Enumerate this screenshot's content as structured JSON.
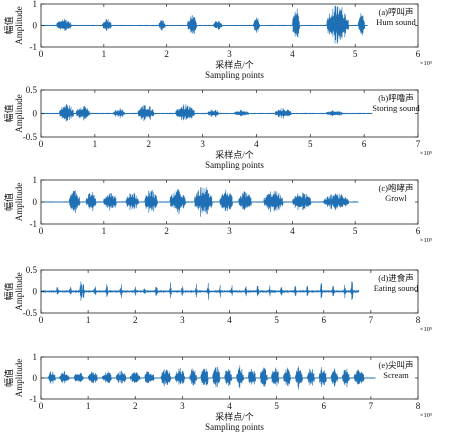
{
  "chart_data": [
    {
      "type": "line",
      "annotation": [
        "(a)哼叫声",
        "Hum sound"
      ],
      "ylabel": [
        "幅值",
        "Amplitude"
      ],
      "xlabel": [
        "采样点/个",
        "Sampling points"
      ],
      "xlim": [
        0,
        6
      ],
      "ylim": [
        -1,
        1
      ],
      "xticks": [
        0,
        1,
        2,
        3,
        4,
        5,
        6
      ],
      "yticks": [
        -1,
        0,
        1
      ],
      "x_multiplier": "×10⁵",
      "signal_end": 5.2,
      "bursts": [
        {
          "x": [
            0.25,
            0.48
          ],
          "peak": 0.35
        },
        {
          "x": [
            0.98,
            1.12
          ],
          "peak": 0.35
        },
        {
          "x": [
            1.88,
            1.98
          ],
          "peak": 0.3
        },
        {
          "x": [
            2.33,
            2.48
          ],
          "peak": 0.5
        },
        {
          "x": [
            2.75,
            2.88
          ],
          "peak": 0.3
        },
        {
          "x": [
            3.38,
            3.48
          ],
          "peak": 0.4
        },
        {
          "x": [
            4.0,
            4.12
          ],
          "peak": 0.9
        },
        {
          "x": [
            4.55,
            4.9
          ],
          "peak": 1.0
        },
        {
          "x": [
            5.05,
            5.15
          ],
          "peak": 0.6
        }
      ]
    },
    {
      "type": "line",
      "annotation": [
        "(b)呼噜声",
        "Storing sound"
      ],
      "ylabel": [
        "幅值",
        "Amplitude"
      ],
      "xlabel": [
        "采样点/个",
        "Sampling points"
      ],
      "xlim": [
        0,
        7
      ],
      "ylim": [
        -0.5,
        0.5
      ],
      "xticks": [
        0,
        1,
        2,
        3,
        4,
        5,
        6,
        7
      ],
      "yticks": [
        -0.5,
        0,
        0.5
      ],
      "x_multiplier": "×10⁵",
      "signal_end": 6.15,
      "bursts": [
        {
          "x": [
            0.35,
            0.6
          ],
          "peak": 0.22
        },
        {
          "x": [
            0.65,
            0.9
          ],
          "peak": 0.2
        },
        {
          "x": [
            1.35,
            1.55
          ],
          "peak": 0.12
        },
        {
          "x": [
            1.8,
            2.1
          ],
          "peak": 0.2
        },
        {
          "x": [
            2.5,
            2.85
          ],
          "peak": 0.2
        },
        {
          "x": [
            3.1,
            3.3
          ],
          "peak": 0.1
        },
        {
          "x": [
            3.6,
            3.85
          ],
          "peak": 0.08
        },
        {
          "x": [
            4.35,
            4.65
          ],
          "peak": 0.12
        },
        {
          "x": [
            5.3,
            5.6
          ],
          "peak": 0.08
        }
      ]
    },
    {
      "type": "line",
      "annotation": [
        "(c)咆哮声",
        "Growl"
      ],
      "ylabel": [
        "幅值",
        "Amplitude"
      ],
      "xlabel": [
        "采样点/个",
        "Sampling points"
      ],
      "xlim": [
        0,
        6
      ],
      "ylim": [
        -1,
        1
      ],
      "xticks": [
        0,
        1,
        2,
        3,
        4,
        5,
        6
      ],
      "yticks": [
        -1,
        0,
        1
      ],
      "x_multiplier": "×10⁵",
      "signal_end": 5.05,
      "bursts": [
        {
          "x": [
            0.45,
            0.62
          ],
          "peak": 0.6
        },
        {
          "x": [
            0.72,
            0.88
          ],
          "peak": 0.5
        },
        {
          "x": [
            1.0,
            1.2
          ],
          "peak": 0.55
        },
        {
          "x": [
            1.35,
            1.55
          ],
          "peak": 0.5
        },
        {
          "x": [
            1.65,
            1.85
          ],
          "peak": 0.6
        },
        {
          "x": [
            2.05,
            2.3
          ],
          "peak": 0.6
        },
        {
          "x": [
            2.45,
            2.72
          ],
          "peak": 0.75
        },
        {
          "x": [
            2.85,
            3.05
          ],
          "peak": 0.6
        },
        {
          "x": [
            3.15,
            3.35
          ],
          "peak": 0.5
        },
        {
          "x": [
            3.55,
            3.85
          ],
          "peak": 0.55
        },
        {
          "x": [
            4.0,
            4.3
          ],
          "peak": 0.45
        },
        {
          "x": [
            4.5,
            4.9
          ],
          "peak": 0.4
        }
      ]
    },
    {
      "type": "line",
      "annotation": [
        "(d)进食声",
        "Eating sound"
      ],
      "ylabel": [
        "幅值",
        "Amplitude"
      ],
      "xlabel": [
        "采样点/个",
        "Sampling points"
      ],
      "xlim": [
        0,
        8
      ],
      "ylim": [
        -0.5,
        0.5
      ],
      "xticks": [
        0,
        1,
        2,
        3,
        4,
        5,
        6,
        7,
        8
      ],
      "yticks": [
        -0.5,
        0,
        0.5
      ],
      "x_multiplier": "×10⁵",
      "signal_end": 6.75,
      "spikes": [
        0.35,
        0.62,
        0.85,
        0.9,
        1.15,
        1.4,
        1.7,
        2.0,
        2.2,
        2.45,
        2.75,
        3.0,
        3.3,
        3.55,
        3.8,
        4.05,
        4.35,
        4.6,
        4.85,
        5.1,
        5.4,
        5.65,
        5.95,
        6.2,
        6.45,
        6.6
      ],
      "spike_peaks": [
        0.15,
        0.2,
        0.45,
        0.3,
        0.2,
        0.2,
        0.25,
        0.2,
        0.15,
        0.2,
        0.25,
        0.2,
        0.2,
        0.25,
        0.2,
        0.2,
        0.25,
        0.2,
        0.2,
        0.25,
        0.2,
        0.2,
        0.25,
        0.2,
        0.2,
        0.5
      ]
    },
    {
      "type": "line",
      "annotation": [
        "(e)尖叫声",
        "Scream"
      ],
      "ylabel": [
        "幅值",
        "Amplitude"
      ],
      "xlabel": [
        "采样点/个",
        "Sampling points"
      ],
      "xlim": [
        0,
        8
      ],
      "ylim": [
        -1,
        1
      ],
      "xticks": [
        0,
        1,
        2,
        3,
        4,
        5,
        6,
        7,
        8
      ],
      "yticks": [
        -1,
        0,
        1
      ],
      "x_multiplier": "×10⁵",
      "signal_end": 7.1,
      "bursts": [
        {
          "x": [
            0.15,
            0.3
          ],
          "peak": 0.35
        },
        {
          "x": [
            0.4,
            0.6
          ],
          "peak": 0.35
        },
        {
          "x": [
            0.7,
            0.9
          ],
          "peak": 0.35
        },
        {
          "x": [
            1.0,
            1.2
          ],
          "peak": 0.35
        },
        {
          "x": [
            1.3,
            1.5
          ],
          "peak": 0.35
        },
        {
          "x": [
            1.6,
            1.8
          ],
          "peak": 0.35
        },
        {
          "x": [
            1.9,
            2.1
          ],
          "peak": 0.35
        },
        {
          "x": [
            2.2,
            2.4
          ],
          "peak": 0.4
        },
        {
          "x": [
            2.55,
            2.75
          ],
          "peak": 0.5
        },
        {
          "x": [
            2.85,
            3.05
          ],
          "peak": 0.5
        },
        {
          "x": [
            3.15,
            3.3
          ],
          "peak": 0.5
        },
        {
          "x": [
            3.4,
            3.55
          ],
          "peak": 0.55
        },
        {
          "x": [
            3.65,
            3.8
          ],
          "peak": 0.6
        },
        {
          "x": [
            3.9,
            4.05
          ],
          "peak": 0.55
        },
        {
          "x": [
            4.15,
            4.3
          ],
          "peak": 0.6
        },
        {
          "x": [
            4.4,
            4.55
          ],
          "peak": 0.6
        },
        {
          "x": [
            4.65,
            4.8
          ],
          "peak": 0.6
        },
        {
          "x": [
            4.9,
            5.05
          ],
          "peak": 0.65
        },
        {
          "x": [
            5.15,
            5.3
          ],
          "peak": 0.6
        },
        {
          "x": [
            5.4,
            5.55
          ],
          "peak": 0.6
        },
        {
          "x": [
            5.65,
            5.8
          ],
          "peak": 0.55
        },
        {
          "x": [
            5.9,
            6.05
          ],
          "peak": 0.55
        },
        {
          "x": [
            6.15,
            6.3
          ],
          "peak": 0.5
        },
        {
          "x": [
            6.4,
            6.55
          ],
          "peak": 0.5
        },
        {
          "x": [
            6.65,
            6.85
          ],
          "peak": 0.45
        }
      ]
    }
  ],
  "style": {
    "line_color": "#1f6fb4",
    "axis_color": "#222222"
  }
}
